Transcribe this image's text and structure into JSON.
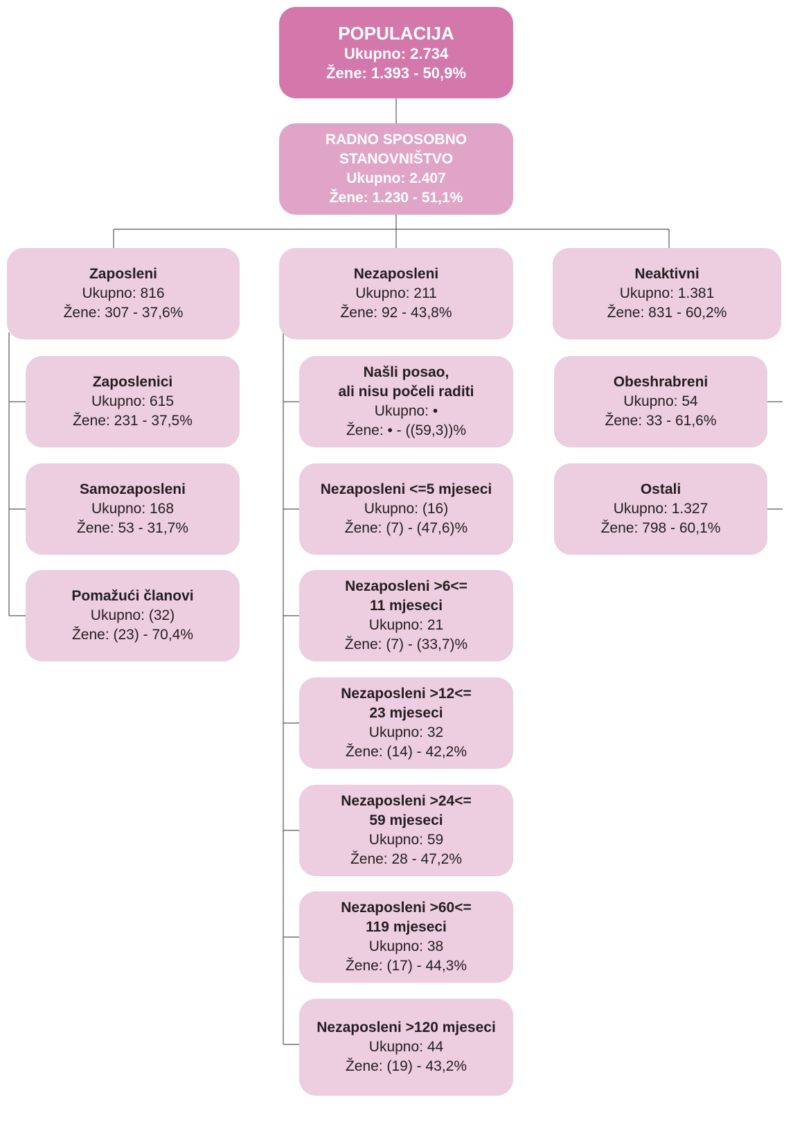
{
  "nodes": [
    {
      "title": [
        "POPULACIJA"
      ],
      "ukupno": "Ukupno: 2.734",
      "zene": "Žene: 1.393 - 50,9%"
    },
    {
      "title": [
        "RADNO SPOSOBNO",
        "STANOVNIŠTVO"
      ],
      "ukupno": "Ukupno: 2.407",
      "zene": "Žene: 1.230 - 51,1%"
    },
    {
      "title": [
        "Zaposleni"
      ],
      "ukupno": "Ukupno: 816",
      "zene": "Žene: 307 - 37,6%"
    },
    {
      "title": [
        "Nezaposleni"
      ],
      "ukupno": "Ukupno: 211",
      "zene": "Žene: 92 - 43,8%"
    },
    {
      "title": [
        "Neaktivni"
      ],
      "ukupno": "Ukupno: 1.381",
      "zene": "Žene: 831 - 60,2%"
    },
    {
      "title": [
        "Zaposlenici"
      ],
      "ukupno": "Ukupno: 615",
      "zene": "Žene: 231 - 37,5%"
    },
    {
      "title": [
        "Samozaposleni"
      ],
      "ukupno": "Ukupno: 168",
      "zene": "Žene: 53 - 31,7%"
    },
    {
      "title": [
        "Pomažući članovi"
      ],
      "ukupno": "Ukupno: (32)",
      "zene": "Žene: (23) - 70,4%"
    },
    {
      "title": [
        "Našli posao,",
        "ali nisu počeli raditi"
      ],
      "ukupno": "Ukupno: •",
      "zene": "Žene: • - ((59,3))%"
    },
    {
      "title": [
        "Nezaposleni <=5 mjeseci"
      ],
      "ukupno": "Ukupno: (16)",
      "zene": "Žene: (7) - (47,6)%"
    },
    {
      "title": [
        "Nezaposleni >6<=",
        "11 mjeseci"
      ],
      "ukupno": "Ukupno: 21",
      "zene": "Žene: (7) - (33,7)%"
    },
    {
      "title": [
        "Nezaposleni >12<=",
        "23 mjeseci"
      ],
      "ukupno": "Ukupno: 32",
      "zene": "Žene: (14) - 42,2%"
    },
    {
      "title": [
        "Nezaposleni >24<=",
        "59 mjeseci"
      ],
      "ukupno": "Ukupno: 59",
      "zene": "Žene: 28 - 47,2%"
    },
    {
      "title": [
        "Nezaposleni >60<=",
        "119 mjeseci"
      ],
      "ukupno": "Ukupno: 38",
      "zene": "Žene: (17) - 44,3%"
    },
    {
      "title": [
        "Nezaposleni >120 mjeseci"
      ],
      "ukupno": "Ukupno: 44",
      "zene": "Žene: (19) - 43,2%"
    },
    {
      "title": [
        "Obeshrabreni"
      ],
      "ukupno": "Ukupno: 54",
      "zene": "Žene: 33 - 61,6%"
    },
    {
      "title": [
        "Ostali"
      ],
      "ukupno": "Ukupno: 1.327",
      "zene": "Žene: 798 - 60,1%"
    }
  ]
}
